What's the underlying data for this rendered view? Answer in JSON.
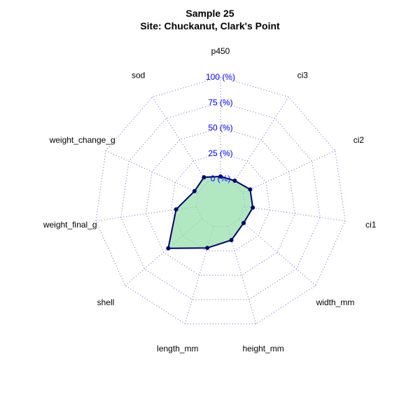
{
  "chart_data": {
    "type": "radar",
    "title": "Sample 25",
    "subtitle": "Site: Chuckanut, Clark's Point",
    "axes": [
      "p450",
      "ci3",
      "ci2",
      "ci1",
      "width_mm",
      "height_mm",
      "length_mm",
      "shell",
      "weight_final_g",
      "weight_change_g",
      "sod"
    ],
    "ring_labels": [
      "0 (%)",
      "25 (%)",
      "50 (%)",
      "75 (%)",
      "100 (%)"
    ],
    "ring_values": [
      0,
      25,
      50,
      75,
      100
    ],
    "range": [
      0,
      100
    ],
    "series": [
      {
        "values": [
          2,
          2,
          8,
          8,
          6,
          14,
          22,
          44,
          20,
          4,
          6
        ]
      }
    ],
    "grid": true,
    "colors": {
      "line": "#000066",
      "fill": "#90DEA8",
      "grid": "#6666CC",
      "ring_label": "#0000FF"
    }
  }
}
